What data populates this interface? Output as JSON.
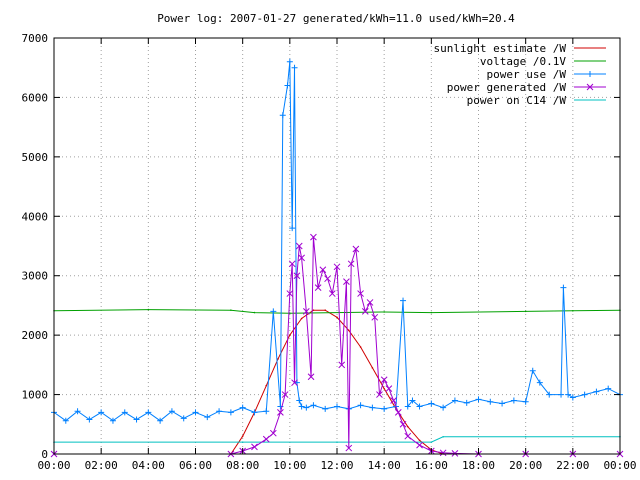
{
  "chart_data": {
    "type": "line",
    "title": "Power log: 2007-01-27 generated/kWh=11.0 used/kWh=20.4",
    "xlabel": "",
    "ylabel": "",
    "xlim": [
      0,
      24
    ],
    "ylim": [
      0,
      7000
    ],
    "grid": true,
    "legend_position": "top-right",
    "x_tick_labels": [
      "00:00",
      "02:00",
      "04:00",
      "06:00",
      "08:00",
      "10:00",
      "12:00",
      "14:00",
      "16:00",
      "18:00",
      "20:00",
      "22:00",
      "00:00"
    ],
    "y_tick_labels": [
      "0",
      "1000",
      "2000",
      "3000",
      "4000",
      "5000",
      "6000",
      "7000"
    ],
    "series": [
      {
        "name": "sunlight estimate /W",
        "color": "#d00000",
        "marker": "none",
        "x": [
          7.5,
          8.0,
          8.5,
          9.0,
          9.5,
          10.0,
          10.5,
          11.0,
          11.5,
          12.0,
          12.5,
          13.0,
          13.5,
          14.0,
          14.5,
          15.0,
          15.5,
          16.0,
          16.5
        ],
        "y": [
          0,
          300,
          700,
          1150,
          1600,
          2000,
          2280,
          2420,
          2420,
          2300,
          2080,
          1800,
          1450,
          1100,
          760,
          460,
          230,
          70,
          0
        ]
      },
      {
        "name": "voltage /0.1V",
        "color": "#00a000",
        "marker": "none",
        "x": [
          0,
          4,
          7.5,
          8.5,
          10,
          14,
          16,
          20,
          22,
          24
        ],
        "y": [
          2410,
          2430,
          2420,
          2380,
          2370,
          2390,
          2380,
          2400,
          2410,
          2420
        ]
      },
      {
        "name": "power use /W",
        "color": "#0080ff",
        "marker": "plus",
        "x": [
          0,
          0.5,
          1,
          1.5,
          2,
          2.5,
          3,
          3.5,
          4,
          4.5,
          5,
          5.5,
          6,
          6.5,
          7,
          7.5,
          8,
          8.5,
          9,
          9.3,
          9.6,
          9.7,
          9.9,
          10.0,
          10.1,
          10.2,
          10.3,
          10.4,
          10.5,
          10.7,
          11,
          11.5,
          12,
          12.5,
          13,
          13.5,
          14,
          14.5,
          14.8,
          15,
          15.2,
          15.5,
          16,
          16.5,
          17,
          17.5,
          18,
          18.5,
          19,
          19.5,
          20,
          20.3,
          20.6,
          21,
          21.5,
          21.6,
          21.8,
          22,
          22.5,
          23,
          23.5,
          24
        ],
        "y": [
          700,
          560,
          720,
          580,
          700,
          560,
          700,
          580,
          700,
          560,
          720,
          600,
          700,
          620,
          720,
          700,
          780,
          700,
          720,
          2400,
          800,
          5700,
          6200,
          6600,
          3800,
          6500,
          1200,
          900,
          800,
          780,
          820,
          760,
          800,
          760,
          820,
          780,
          760,
          800,
          2580,
          800,
          900,
          800,
          850,
          780,
          900,
          860,
          920,
          880,
          850,
          900,
          880,
          1400,
          1200,
          1000,
          1000,
          2800,
          1000,
          950,
          1000,
          1050,
          1100,
          1000
        ]
      },
      {
        "name": "power generated /W",
        "color": "#a000d0",
        "marker": "cross",
        "x": [
          0,
          7.5,
          8.0,
          8.5,
          9.0,
          9.3,
          9.6,
          9.8,
          10.0,
          10.1,
          10.2,
          10.3,
          10.4,
          10.5,
          10.7,
          10.9,
          11.0,
          11.2,
          11.4,
          11.6,
          11.8,
          12.0,
          12.2,
          12.4,
          12.5,
          12.6,
          12.8,
          13.0,
          13.2,
          13.4,
          13.6,
          13.8,
          14.0,
          14.2,
          14.4,
          14.6,
          14.8,
          15.0,
          15.5,
          16.0,
          16.5,
          17,
          18,
          20,
          22,
          24
        ],
        "y": [
          0,
          0,
          50,
          120,
          250,
          350,
          700,
          1000,
          2700,
          3200,
          1200,
          3000,
          3500,
          3300,
          2400,
          1300,
          3650,
          2800,
          3100,
          2950,
          2700,
          3150,
          1500,
          2900,
          100,
          3200,
          3450,
          2700,
          2400,
          2550,
          2300,
          1000,
          1250,
          1100,
          900,
          700,
          500,
          300,
          150,
          50,
          20,
          10,
          0,
          0,
          0,
          0
        ]
      },
      {
        "name": "power on C14 /W",
        "color": "#00c0c0",
        "marker": "none",
        "x": [
          0,
          8,
          12,
          16,
          16.5,
          20,
          24
        ],
        "y": [
          200,
          200,
          200,
          200,
          290,
          290,
          290
        ]
      }
    ]
  }
}
